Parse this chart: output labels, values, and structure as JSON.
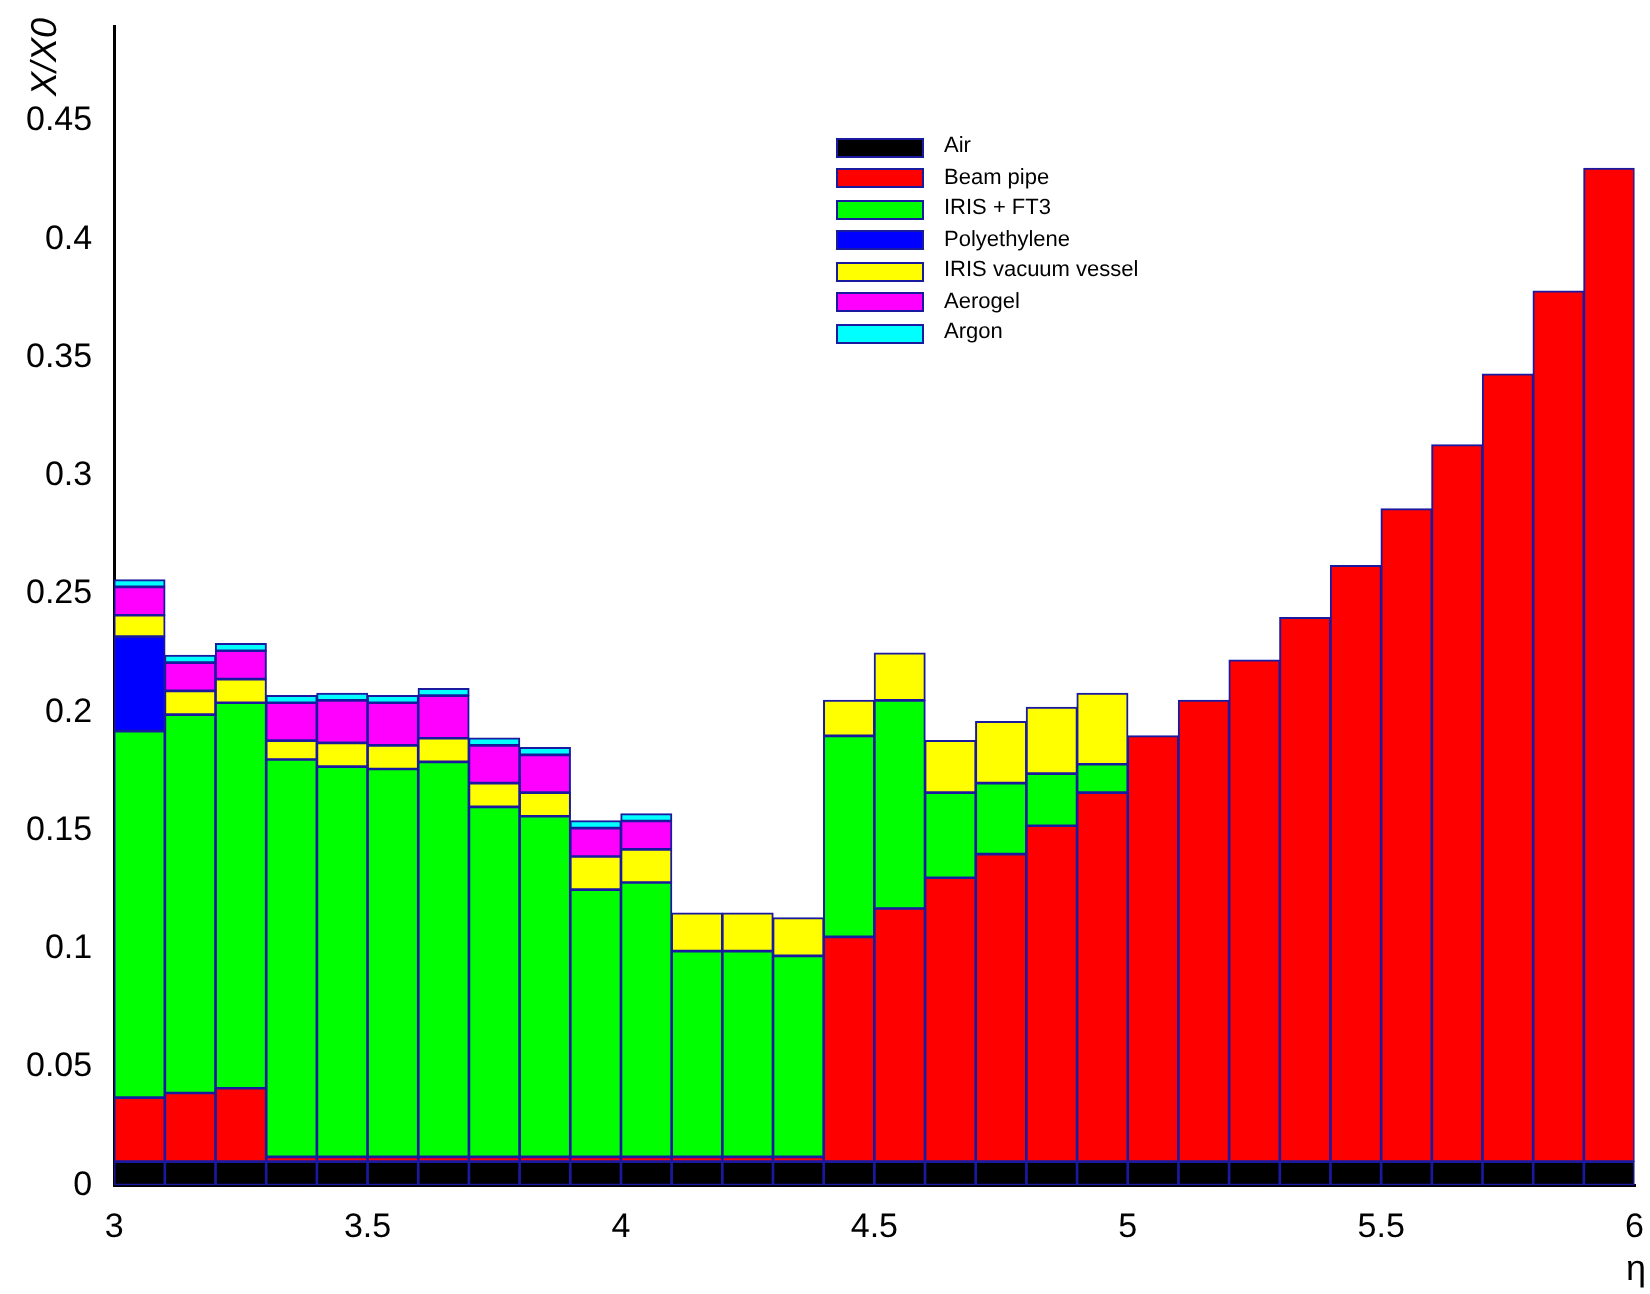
{
  "chart_data": {
    "type": "bar",
    "stacked": true,
    "xlabel": "η",
    "ylabel": "X/X0",
    "x": [
      3.05,
      3.15,
      3.25,
      3.35,
      3.45,
      3.55,
      3.65,
      3.75,
      3.85,
      3.95,
      4.05,
      4.15,
      4.25,
      4.35,
      4.45,
      4.55,
      4.65,
      4.75,
      4.85,
      4.95,
      5.05,
      5.15,
      5.25,
      5.35,
      5.45,
      5.55,
      5.65,
      5.75,
      5.85,
      5.95
    ],
    "series": [
      {
        "name": "Air",
        "color": "#000000",
        "values": [
          0.01,
          0.01,
          0.01,
          0.01,
          0.01,
          0.01,
          0.01,
          0.01,
          0.01,
          0.01,
          0.01,
          0.01,
          0.01,
          0.01,
          0.01,
          0.01,
          0.01,
          0.01,
          0.01,
          0.01,
          0.01,
          0.01,
          0.01,
          0.01,
          0.01,
          0.01,
          0.01,
          0.01,
          0.01,
          0.01
        ]
      },
      {
        "name": "Beam pipe",
        "color": "#ff0000",
        "values": [
          0.027,
          0.029,
          0.031,
          0.002,
          0.002,
          0.002,
          0.002,
          0.002,
          0.002,
          0.002,
          0.002,
          0.002,
          0.002,
          0.002,
          0.095,
          0.107,
          0.12,
          0.13,
          0.142,
          0.156,
          0.18,
          0.195,
          0.212,
          0.23,
          0.252,
          0.276,
          0.303,
          0.333,
          0.368,
          0.42
        ]
      },
      {
        "name": "IRIS + FT3",
        "color": "#00ff00",
        "values": [
          0.155,
          0.16,
          0.163,
          0.168,
          0.165,
          0.164,
          0.167,
          0.148,
          0.144,
          0.113,
          0.116,
          0.087,
          0.087,
          0.085,
          0.085,
          0.088,
          0.036,
          0.03,
          0.022,
          0.012,
          0,
          0,
          0,
          0,
          0,
          0,
          0,
          0,
          0,
          0
        ]
      },
      {
        "name": "Polyethylene",
        "color": "#0000ff",
        "values": [
          0.04,
          0,
          0,
          0,
          0,
          0,
          0,
          0,
          0,
          0,
          0,
          0,
          0,
          0,
          0,
          0,
          0,
          0,
          0,
          0,
          0,
          0,
          0,
          0,
          0,
          0,
          0,
          0,
          0,
          0
        ]
      },
      {
        "name": "IRIS vacuum vessel",
        "color": "#ffff00",
        "values": [
          0.009,
          0.01,
          0.01,
          0.008,
          0.01,
          0.01,
          0.01,
          0.01,
          0.01,
          0.014,
          0.014,
          0.016,
          0.016,
          0.016,
          0.015,
          0.02,
          0.022,
          0.026,
          0.028,
          0.03,
          0,
          0,
          0,
          0,
          0,
          0,
          0,
          0,
          0,
          0
        ]
      },
      {
        "name": "Aerogel",
        "color": "#ff00ff",
        "values": [
          0.012,
          0.012,
          0.012,
          0.016,
          0.018,
          0.018,
          0.018,
          0.016,
          0.016,
          0.012,
          0.012,
          0,
          0,
          0,
          0,
          0,
          0,
          0,
          0,
          0,
          0,
          0,
          0,
          0,
          0,
          0,
          0,
          0,
          0,
          0
        ]
      },
      {
        "name": "Argon",
        "color": "#00ffff",
        "values": [
          0.003,
          0.003,
          0.003,
          0.003,
          0.003,
          0.003,
          0.003,
          0.003,
          0.003,
          0.003,
          0.003,
          0,
          0,
          0,
          0,
          0,
          0,
          0,
          0,
          0,
          0,
          0,
          0,
          0,
          0,
          0,
          0,
          0,
          0,
          0
        ]
      }
    ],
    "xlim": [
      3,
      6
    ],
    "xticks": [
      3,
      3.5,
      4,
      4.5,
      5,
      5.5,
      6
    ],
    "ylim": [
      0,
      0.49
    ],
    "yticks": [
      0,
      0.05,
      0.1,
      0.15,
      0.2,
      0.25,
      0.3,
      0.35,
      0.4,
      0.45
    ],
    "grid": false,
    "legend": "top"
  }
}
